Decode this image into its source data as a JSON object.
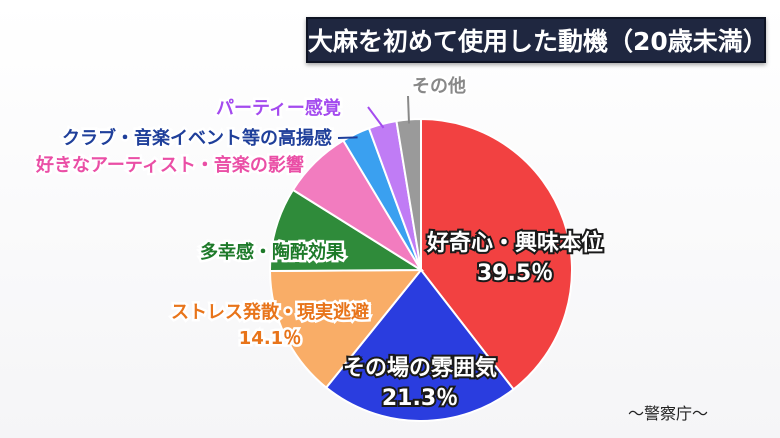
{
  "chart_data": {
    "type": "pie",
    "title": "大麻を初めて使用した動機（20歳未満）",
    "start_angle_deg": 0,
    "direction": "clockwise",
    "slices": [
      {
        "label": "好奇心・興味本位",
        "value": 39.5,
        "value_label": "39.5％",
        "color": "#f24141",
        "label_color": "#e8262f"
      },
      {
        "label": "その場の雰囲気",
        "value": 21.3,
        "value_label": "21.3％",
        "color": "#2a3ddf",
        "label_color": "#2234c9"
      },
      {
        "label": "ストレス発散・現実逃避",
        "value": 14.1,
        "value_label": "14.1％",
        "color": "#f9ad67",
        "label_color": "#e8741a"
      },
      {
        "label": "多幸感・陶酔効果",
        "value": 9.0,
        "value_label": "",
        "color": "#2f8b3a",
        "label_color": "#1e7a2a"
      },
      {
        "label": "好きなアーティスト・音楽の影響",
        "value": 7.5,
        "value_label": "",
        "color": "#f27cbf",
        "label_color": "#ea4fa6"
      },
      {
        "label": "クラブ・音楽イベント等の高揚感",
        "value": 3.0,
        "value_label": "",
        "color": "#3aa0f0",
        "label_color": "#1f3f9a"
      },
      {
        "label": "パーティー感覚",
        "value": 3.0,
        "value_label": "",
        "color": "#c07cf5",
        "label_color": "#a44bef"
      },
      {
        "label": "その他",
        "value": 2.6,
        "value_label": "",
        "color": "#9a9a9a",
        "label_color": "#888888"
      }
    ]
  },
  "source": "〜警察庁〜"
}
